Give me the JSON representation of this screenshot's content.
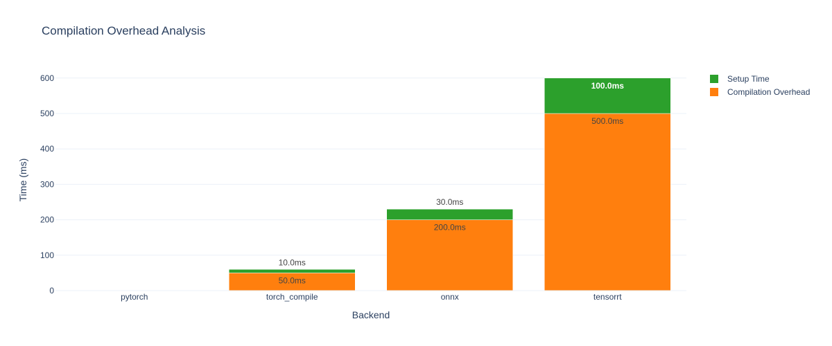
{
  "chart_data": {
    "type": "bar",
    "stacked": true,
    "title": "Compilation Overhead Analysis",
    "xlabel": "Backend",
    "ylabel": "Time (ms)",
    "categories": [
      "pytorch",
      "torch_compile",
      "onnx",
      "tensorrt"
    ],
    "ylim": [
      0,
      625
    ],
    "yticks": [
      0,
      100,
      200,
      300,
      400,
      500,
      600
    ],
    "grid": true,
    "legend_position": "top-right",
    "series": [
      {
        "name": "Compilation Overhead",
        "color": "#ff7f0e",
        "values": [
          0,
          50,
          200,
          500
        ],
        "labels": [
          "",
          "50.0ms",
          "200.0ms",
          "500.0ms"
        ]
      },
      {
        "name": "Setup Time",
        "color": "#2ca02c",
        "values": [
          0,
          10,
          30,
          100
        ],
        "labels": [
          "",
          "10.0ms",
          "30.0ms",
          "100.0ms"
        ]
      }
    ]
  }
}
